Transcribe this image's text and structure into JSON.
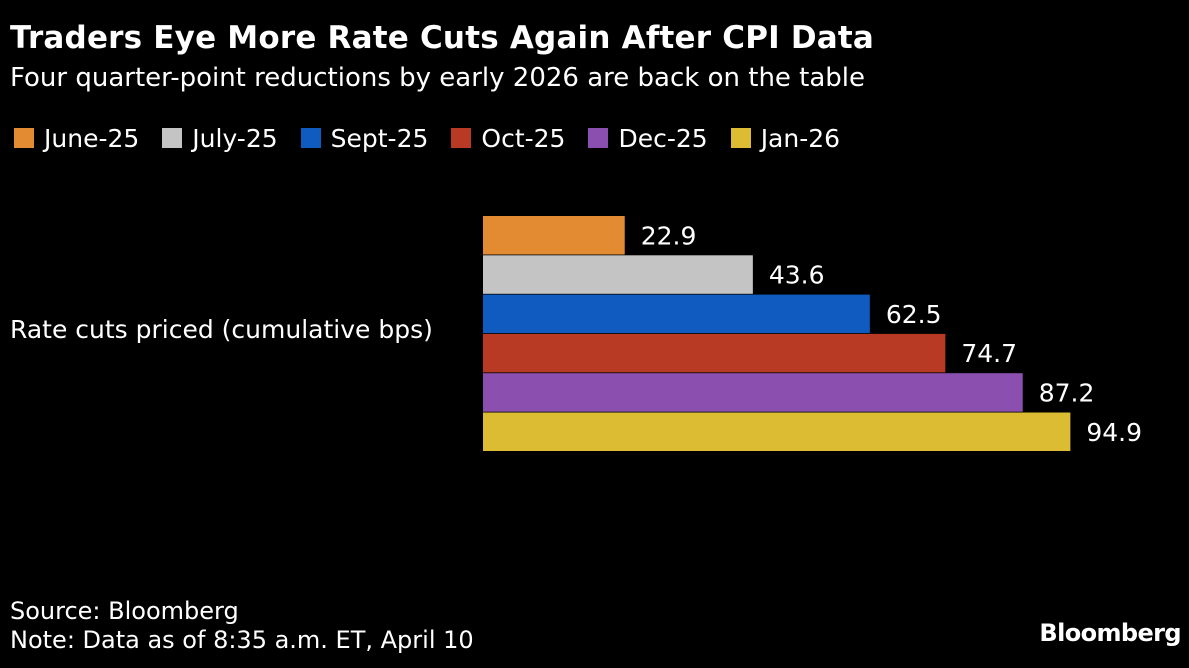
{
  "header": {
    "title": "Traders Eye More Rate Cuts Again After CPI Data",
    "subtitle": "Four quarter-point reductions by early 2026 are back on the table"
  },
  "footer": {
    "source": "Source: Bloomberg",
    "note": "Note: Data as of 8:35 a.m. ET, April 10",
    "logo": "Bloomberg"
  },
  "chart_data": {
    "type": "bar",
    "orientation": "horizontal",
    "title": "Traders Eye More Rate Cuts Again After CPI Data",
    "subtitle": "Four quarter-point reductions by early 2026 are back on the table",
    "categories": [
      "Rate cuts priced (cumulative bps)"
    ],
    "series": [
      {
        "name": "June-25",
        "values": [
          22.9
        ],
        "color": "#e38b33"
      },
      {
        "name": "July-25",
        "values": [
          43.6
        ],
        "color": "#c4c4c4"
      },
      {
        "name": "Sept-25",
        "values": [
          62.5
        ],
        "color": "#0f5bbf"
      },
      {
        "name": "Oct-25",
        "values": [
          74.7
        ],
        "color": "#b83a24"
      },
      {
        "name": "Dec-25",
        "values": [
          87.2
        ],
        "color": "#8b4fb0"
      },
      {
        "name": "Jan-26",
        "values": [
          94.9
        ],
        "color": "#dcbc33"
      }
    ],
    "xlim": [
      0,
      95
    ],
    "grid": false,
    "legend_position": "top-left",
    "xlabel": "",
    "ylabel": ""
  }
}
